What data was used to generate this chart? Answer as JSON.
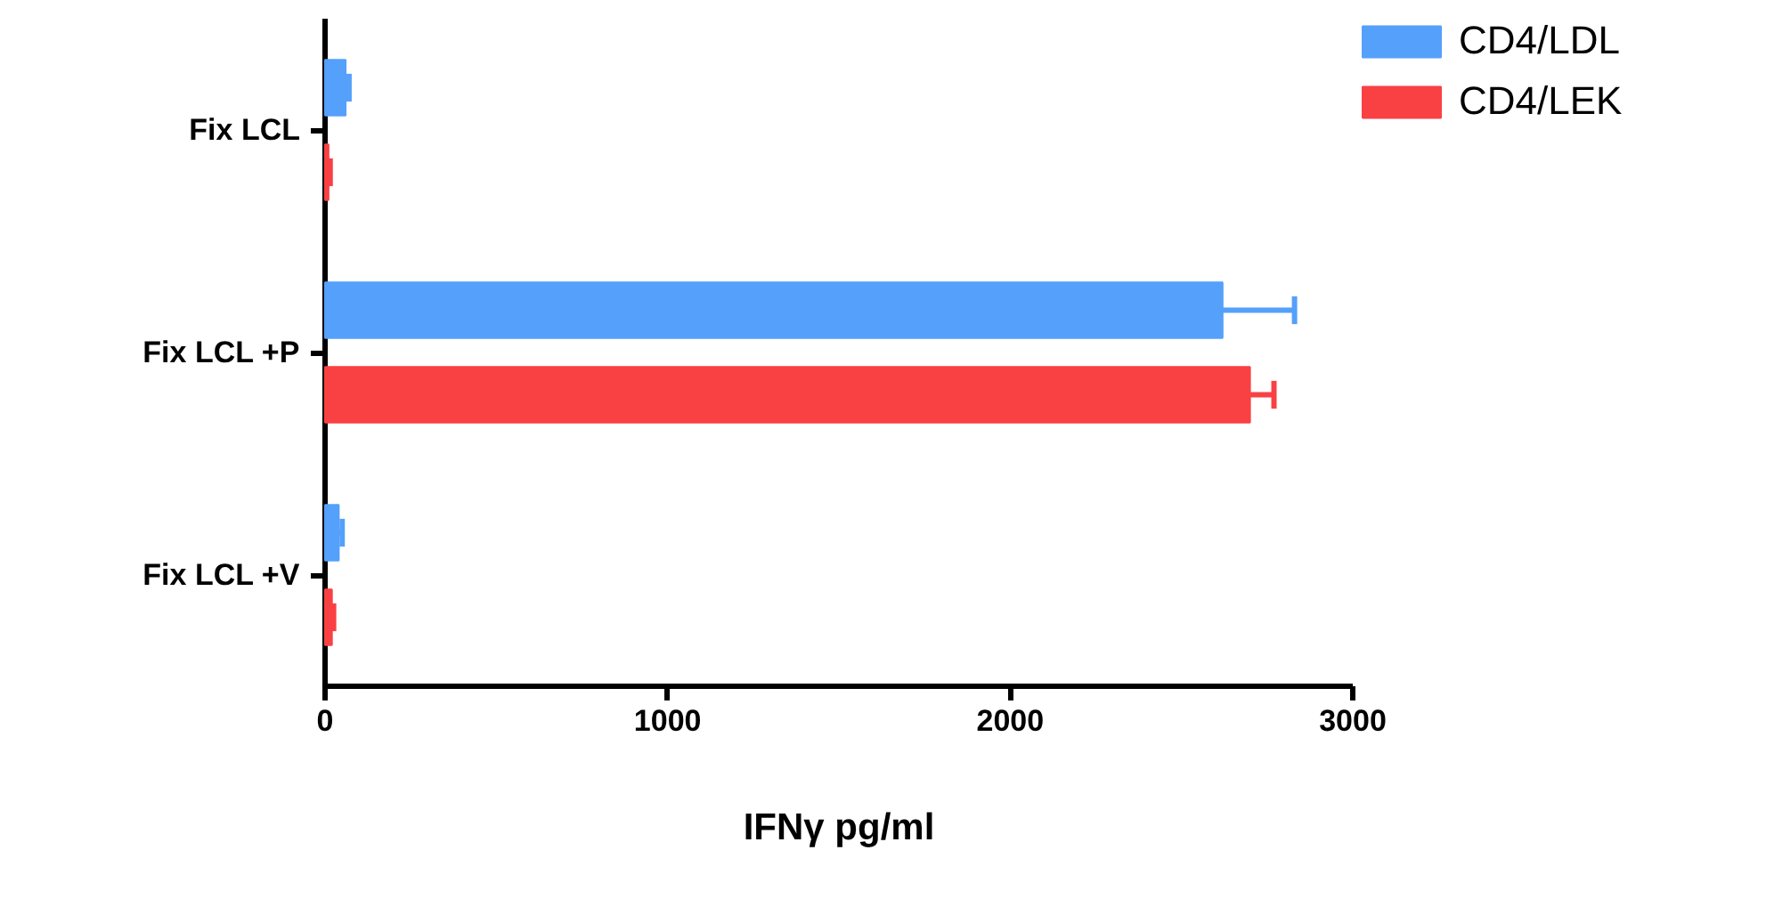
{
  "chart_data": {
    "type": "bar",
    "orientation": "horizontal",
    "xlabel": "IFNγ pg/ml",
    "categories": [
      "Fix LCL",
      "Fix LCL +P",
      "Fix LCL +V"
    ],
    "series": [
      {
        "name": "CD4/LEK",
        "color": "#f94144",
        "values": [
          10,
          2700,
          20
        ],
        "errors": [
          5,
          70,
          5
        ]
      },
      {
        "name": "CD4/LDL",
        "color": "#55a0fb",
        "values": [
          60,
          2620,
          40
        ],
        "errors": [
          10,
          210,
          10
        ]
      }
    ],
    "xlim": [
      0,
      3000
    ],
    "xticks": [
      0,
      1000,
      2000,
      3000
    ],
    "legend": "top right",
    "grid": false
  }
}
